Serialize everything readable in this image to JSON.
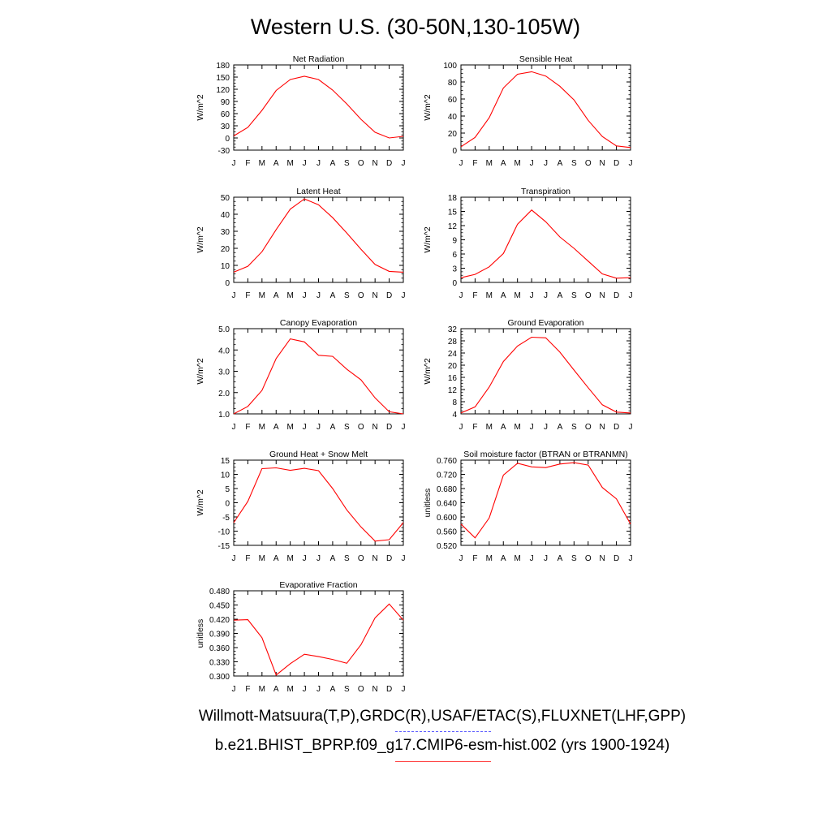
{
  "page": {
    "title": "Western U.S. (30-50N,130-105W)",
    "footer_obs": "Willmott-Matsuura(T,P),GRDC(R),USAF/ETAC(S),FLUXNET(LHF,GPP)",
    "footer_model": "b.e21.BHIST_BPRP.f09_g17.CMIP6-esm-hist.002 (yrs 1900-1924)"
  },
  "colors": {
    "model_line": "#ff0000",
    "obs_line": "#6060ff"
  },
  "chart_data": [
    {
      "type": "line",
      "title": "Net Radiation",
      "ylabel": "W/m^2",
      "x": [
        "J",
        "F",
        "M",
        "A",
        "M",
        "J",
        "J",
        "A",
        "S",
        "O",
        "N",
        "D",
        "J"
      ],
      "ylim": [
        -30,
        180
      ],
      "yticks": [
        "-30",
        "0",
        "30",
        "60",
        "90",
        "120",
        "150",
        "180"
      ],
      "series": [
        {
          "values": [
            5,
            26,
            68,
            117,
            144,
            152,
            144,
            118,
            84,
            46,
            14,
            0,
            4
          ]
        }
      ]
    },
    {
      "type": "line",
      "title": "Sensible Heat",
      "ylabel": "W/m^2",
      "x": [
        "J",
        "F",
        "M",
        "A",
        "M",
        "J",
        "J",
        "A",
        "S",
        "O",
        "N",
        "D",
        "J"
      ],
      "ylim": [
        0,
        100
      ],
      "yticks": [
        "0",
        "20",
        "40",
        "60",
        "80",
        "100"
      ],
      "series": [
        {
          "values": [
            4,
            15,
            38,
            73,
            89,
            92,
            87,
            75,
            59,
            35,
            16,
            5,
            3
          ]
        }
      ]
    },
    {
      "type": "line",
      "title": "Latent Heat",
      "ylabel": "W/m^2",
      "x": [
        "J",
        "F",
        "M",
        "A",
        "M",
        "J",
        "J",
        "A",
        "S",
        "O",
        "N",
        "D",
        "J"
      ],
      "ylim": [
        0,
        50
      ],
      "yticks": [
        "0",
        "10",
        "20",
        "30",
        "40",
        "50"
      ],
      "series": [
        {
          "values": [
            6,
            9.5,
            18,
            31,
            43,
            49,
            45.5,
            38,
            29,
            19.5,
            10.5,
            6.5,
            6
          ]
        }
      ]
    },
    {
      "type": "line",
      "title": "Transpiration",
      "ylabel": "W/m^2",
      "x": [
        "J",
        "F",
        "M",
        "A",
        "M",
        "J",
        "J",
        "A",
        "S",
        "O",
        "N",
        "D",
        "J"
      ],
      "ylim": [
        0,
        18
      ],
      "yticks": [
        "0",
        "3",
        "6",
        "9",
        "12",
        "15",
        "18"
      ],
      "series": [
        {
          "values": [
            1.0,
            1.7,
            3.3,
            6.1,
            12.3,
            15.3,
            12.8,
            9.6,
            7.2,
            4.5,
            1.8,
            0.9,
            1.0
          ]
        }
      ]
    },
    {
      "type": "line",
      "title": "Canopy Evaporation",
      "ylabel": "W/m^2",
      "x": [
        "J",
        "F",
        "M",
        "A",
        "M",
        "J",
        "J",
        "A",
        "S",
        "O",
        "N",
        "D",
        "J"
      ],
      "ylim": [
        1.0,
        5.0
      ],
      "yticks": [
        "1.0",
        "2.0",
        "3.0",
        "4.0",
        "5.0"
      ],
      "series": [
        {
          "values": [
            1.0,
            1.35,
            2.1,
            3.6,
            4.52,
            4.38,
            3.75,
            3.7,
            3.1,
            2.6,
            1.75,
            1.1,
            1.0
          ]
        }
      ]
    },
    {
      "type": "line",
      "title": "Ground Evaporation",
      "ylabel": "W/m^2",
      "x": [
        "J",
        "F",
        "M",
        "A",
        "M",
        "J",
        "J",
        "A",
        "S",
        "O",
        "N",
        "D",
        "J"
      ],
      "ylim": [
        4,
        32
      ],
      "yticks": [
        "4",
        "8",
        "12",
        "16",
        "20",
        "24",
        "28",
        "32"
      ],
      "series": [
        {
          "values": [
            4.3,
            6.3,
            12.8,
            21.2,
            26.3,
            29.2,
            29.0,
            24.3,
            18.4,
            12.6,
            7.0,
            4.6,
            4.3
          ]
        }
      ]
    },
    {
      "type": "line",
      "title": "Ground Heat + Snow Melt",
      "ylabel": "W/m^2",
      "x": [
        "J",
        "F",
        "M",
        "A",
        "M",
        "J",
        "J",
        "A",
        "S",
        "O",
        "N",
        "D",
        "J"
      ],
      "ylim": [
        -15,
        15
      ],
      "yticks": [
        "-15",
        "-10",
        "-5",
        "0",
        "5",
        "10",
        "15"
      ],
      "series": [
        {
          "values": [
            -7,
            0.5,
            12,
            12.3,
            11.4,
            12.1,
            11.3,
            5,
            -2.5,
            -8.5,
            -13.5,
            -13,
            -7
          ]
        }
      ]
    },
    {
      "type": "line",
      "title": "Soil moisture factor (BTRAN or BTRANMN)",
      "ylabel": "unitless",
      "x": [
        "J",
        "F",
        "M",
        "A",
        "M",
        "J",
        "J",
        "A",
        "S",
        "O",
        "N",
        "D",
        "J"
      ],
      "ylim": [
        0.52,
        0.76
      ],
      "yticks": [
        "0.520",
        "0.560",
        "0.600",
        "0.640",
        "0.680",
        "0.720",
        "0.760"
      ],
      "series": [
        {
          "values": [
            0.58,
            0.541,
            0.597,
            0.718,
            0.751,
            0.741,
            0.739,
            0.749,
            0.753,
            0.746,
            0.683,
            0.651,
            0.58
          ]
        }
      ]
    },
    {
      "type": "line",
      "title": "Evaporative Fraction",
      "ylabel": "unitless",
      "x": [
        "J",
        "F",
        "M",
        "A",
        "M",
        "J",
        "J",
        "A",
        "S",
        "O",
        "N",
        "D",
        "J"
      ],
      "ylim": [
        0.3,
        0.48
      ],
      "yticks": [
        "0.300",
        "0.330",
        "0.360",
        "0.390",
        "0.420",
        "0.450",
        "0.480"
      ],
      "series": [
        {
          "values": [
            0.418,
            0.419,
            0.381,
            0.302,
            0.326,
            0.346,
            0.341,
            0.335,
            0.327,
            0.366,
            0.423,
            0.452,
            0.418
          ]
        }
      ]
    }
  ]
}
